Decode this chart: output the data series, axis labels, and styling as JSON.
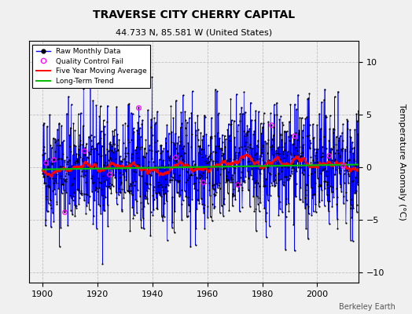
{
  "title": "TRAVERSE CITY CHERRY CAPITAL",
  "subtitle": "44.733 N, 85.581 W (United States)",
  "ylabel": "Temperature Anomaly (°C)",
  "credit": "Berkeley Earth",
  "xlim": [
    1895,
    2015
  ],
  "ylim": [
    -11,
    12
  ],
  "yticks": [
    -10,
    -5,
    0,
    5,
    10
  ],
  "xticks": [
    1900,
    1920,
    1940,
    1960,
    1980,
    2000
  ],
  "raw_color": "#0000ff",
  "ma_color": "#ff0000",
  "trend_color": "#00bb00",
  "qc_color": "#ff00ff",
  "bg_color": "#f0f0f0",
  "grid_color": "#c0c0c0",
  "seed": 42,
  "n_years": 115,
  "start_year": 1900,
  "trend_slope": 0.004,
  "ma_window": 60,
  "noise_std": 2.8
}
